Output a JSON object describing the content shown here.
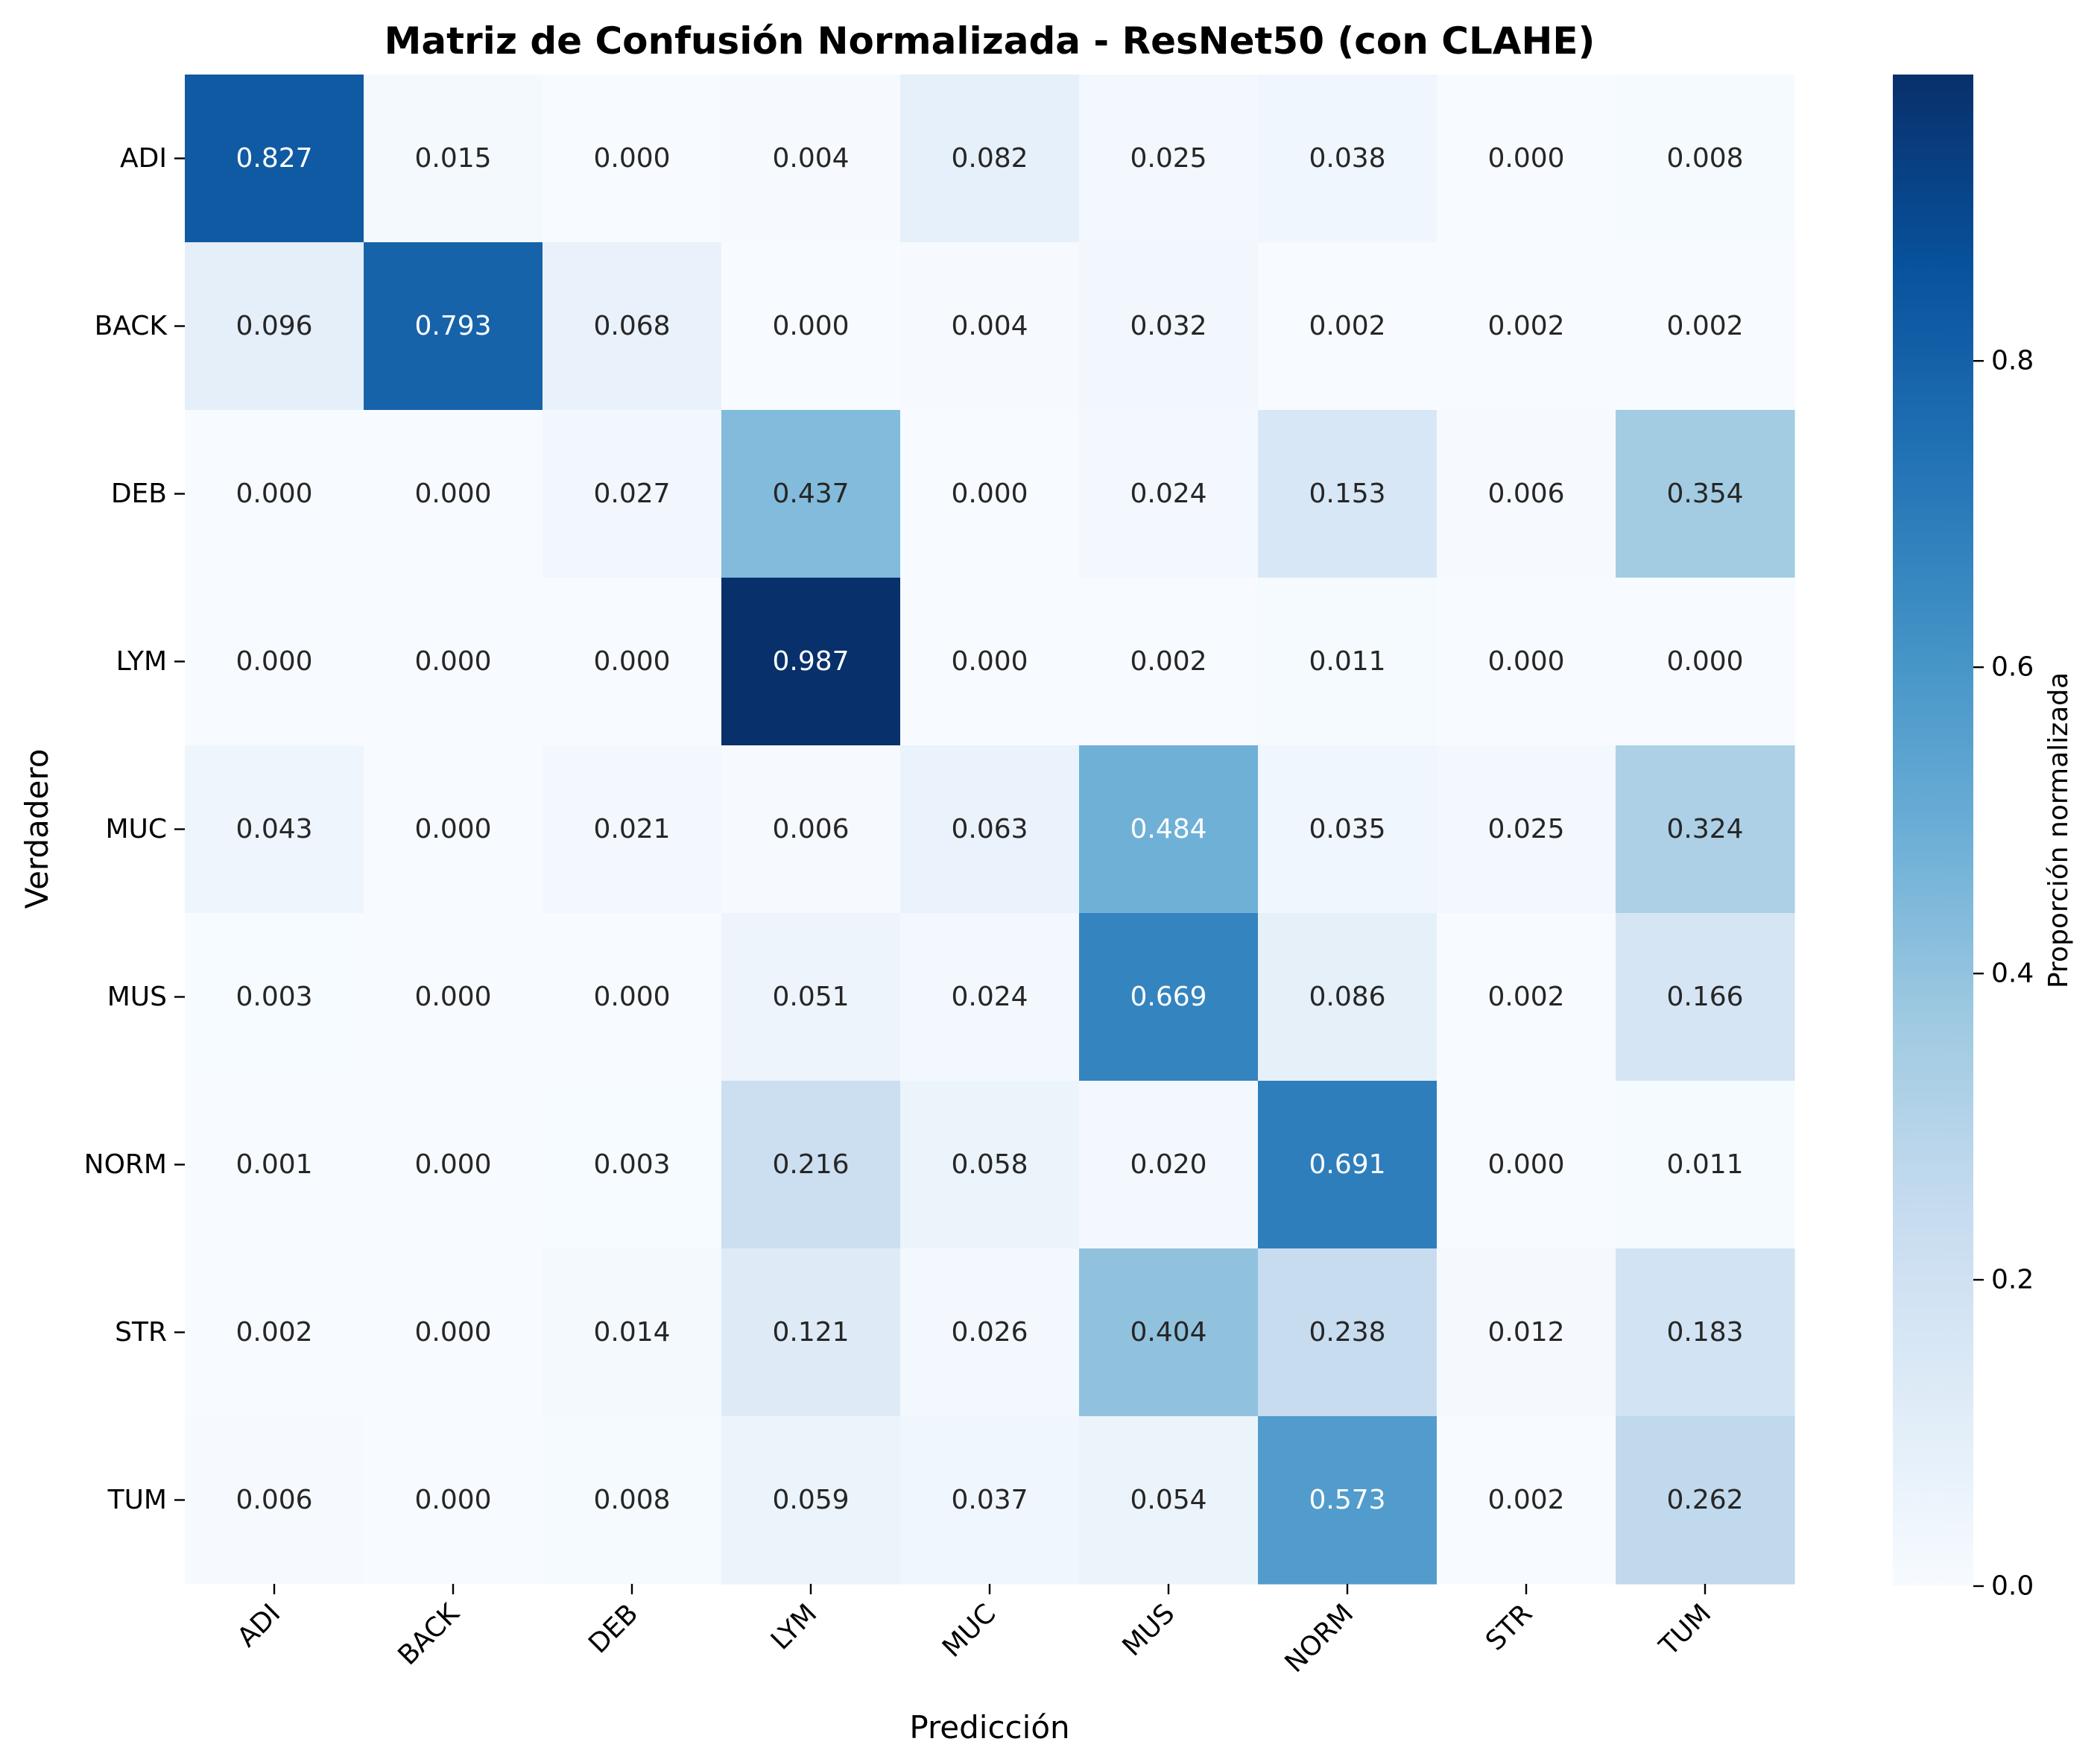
{
  "chart_data": {
    "type": "heatmap",
    "title": "Matriz de Confusión Normalizada - ResNet50 (con CLAHE)",
    "xlabel": "Predicción",
    "ylabel": "Verdadero",
    "x_categories": [
      "ADI",
      "BACK",
      "DEB",
      "LYM",
      "MUC",
      "MUS",
      "NORM",
      "STR",
      "TUM"
    ],
    "y_categories": [
      "ADI",
      "BACK",
      "DEB",
      "LYM",
      "MUC",
      "MUS",
      "NORM",
      "STR",
      "TUM"
    ],
    "values": [
      [
        0.827,
        0.015,
        0.0,
        0.004,
        0.082,
        0.025,
        0.038,
        0.0,
        0.008
      ],
      [
        0.096,
        0.793,
        0.068,
        0.0,
        0.004,
        0.032,
        0.002,
        0.002,
        0.002
      ],
      [
        0.0,
        0.0,
        0.027,
        0.437,
        0.0,
        0.024,
        0.153,
        0.006,
        0.354
      ],
      [
        0.0,
        0.0,
        0.0,
        0.987,
        0.0,
        0.002,
        0.011,
        0.0,
        0.0
      ],
      [
        0.043,
        0.0,
        0.021,
        0.006,
        0.063,
        0.484,
        0.035,
        0.025,
        0.324
      ],
      [
        0.003,
        0.0,
        0.0,
        0.051,
        0.024,
        0.669,
        0.086,
        0.002,
        0.166
      ],
      [
        0.001,
        0.0,
        0.003,
        0.216,
        0.058,
        0.02,
        0.691,
        0.0,
        0.011
      ],
      [
        0.002,
        0.0,
        0.014,
        0.121,
        0.026,
        0.404,
        0.238,
        0.012,
        0.183
      ],
      [
        0.006,
        0.0,
        0.008,
        0.059,
        0.037,
        0.054,
        0.573,
        0.002,
        0.262
      ]
    ],
    "value_format": "3 decimals",
    "colormap": "Blues",
    "color_range": [
      0.0,
      0.987
    ],
    "colorbar": {
      "label": "Proporción normalizada",
      "ticks": [
        0.0,
        0.2,
        0.4,
        0.6,
        0.8
      ],
      "tick_labels": [
        "0.0",
        "0.2",
        "0.4",
        "0.6",
        "0.8"
      ]
    },
    "grid": false,
    "legend": "colorbar-right"
  }
}
